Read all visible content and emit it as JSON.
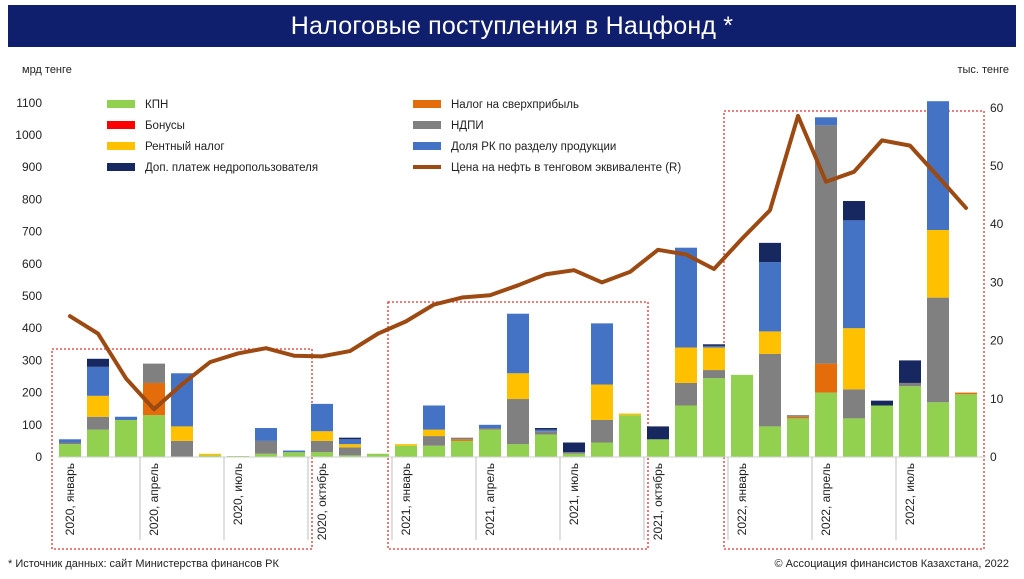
{
  "title": "Налоговые поступления в Нацфонд *",
  "source": "* Источник данных: сайт Министерства финансов РК",
  "copyright": "© Ассоциация финансистов Казахстана, 2022",
  "colors": {
    "title_bg": "#0f1f6e",
    "kpn": "#92d050",
    "bonuses": "#ff0000",
    "rent_tax": "#ffc000",
    "extra_payment": "#17275f",
    "windfall_tax": "#e46c0a",
    "ndpi": "#808080",
    "production_share": "#4472c4",
    "oil_price": "#9c4a12",
    "highlight": "#e03030"
  },
  "chart_data": {
    "type": "bar",
    "stacked": true,
    "left_axis_label": "мрд тенге",
    "right_axis_label": "тыс. тенге",
    "left_ylim": [
      0,
      1100
    ],
    "left_ticks": [
      "0",
      "100",
      "200",
      "300",
      "400",
      "500",
      "600",
      "700",
      "800",
      "900",
      "1000",
      "1100"
    ],
    "right_ylim": [
      0,
      60
    ],
    "right_ticks": [
      "0",
      "10",
      "20",
      "30",
      "40",
      "50",
      "60"
    ],
    "category_labels": [
      {
        "index": 0,
        "text": "2020, январь"
      },
      {
        "index": 3,
        "text": "2020, апрель"
      },
      {
        "index": 6,
        "text": "2020, июль"
      },
      {
        "index": 9,
        "text": "2020, октябрь"
      },
      {
        "index": 12,
        "text": "2021, январь"
      },
      {
        "index": 15,
        "text": "2021, апрель"
      },
      {
        "index": 18,
        "text": "2021, июль"
      },
      {
        "index": 21,
        "text": "2021, октябрь"
      },
      {
        "index": 24,
        "text": "2022, январь"
      },
      {
        "index": 27,
        "text": "2022, апрель"
      },
      {
        "index": 30,
        "text": "2022, июль"
      }
    ],
    "legend": {
      "left": [
        {
          "key": "kpn",
          "name": "КПН"
        },
        {
          "key": "bonuses",
          "name": "Бонусы"
        },
        {
          "key": "rent_tax",
          "name": "Рентный налог"
        },
        {
          "key": "extra_payment",
          "name": "Доп. платеж недропользователя"
        }
      ],
      "right": [
        {
          "key": "windfall_tax",
          "name": "Налог на сверхприбыль"
        },
        {
          "key": "ndpi",
          "name": "НДПИ"
        },
        {
          "key": "production_share",
          "name": "Доля РК по разделу продукции"
        },
        {
          "key": "oil_price",
          "name": "Цена на нефть в тенговом эквиваленте (R)"
        }
      ]
    },
    "stack_order": [
      "kpn",
      "bonuses",
      "windfall_tax",
      "ndpi",
      "rent_tax",
      "production_share",
      "extra_payment"
    ],
    "series": {
      "kpn": [
        40,
        85,
        115,
        130,
        0,
        5,
        3,
        10,
        15,
        15,
        5,
        10,
        35,
        35,
        50,
        85,
        40,
        70,
        10,
        45,
        130,
        55,
        160,
        245,
        255,
        95,
        120,
        200,
        120,
        160,
        220,
        170,
        195
      ],
      "bonuses": [
        0,
        0,
        0,
        0,
        0,
        0,
        0,
        0,
        0,
        0,
        0,
        0,
        0,
        0,
        0,
        0,
        0,
        0,
        0,
        0,
        0,
        0,
        0,
        0,
        0,
        0,
        0,
        0,
        0,
        0,
        0,
        0,
        0
      ],
      "windfall_tax": [
        0,
        0,
        0,
        100,
        0,
        0,
        0,
        0,
        0,
        0,
        0,
        0,
        0,
        0,
        5,
        0,
        0,
        0,
        0,
        0,
        0,
        0,
        0,
        0,
        0,
        0,
        5,
        90,
        0,
        0,
        0,
        0,
        5
      ],
      "ndpi": [
        5,
        40,
        0,
        60,
        50,
        0,
        0,
        40,
        0,
        35,
        25,
        0,
        0,
        30,
        5,
        5,
        140,
        10,
        5,
        70,
        0,
        0,
        70,
        25,
        0,
        225,
        5,
        740,
        90,
        0,
        10,
        325,
        0
      ],
      "rent_tax": [
        0,
        65,
        0,
        0,
        45,
        5,
        0,
        0,
        0,
        30,
        10,
        0,
        5,
        20,
        0,
        0,
        80,
        0,
        0,
        110,
        5,
        0,
        110,
        70,
        0,
        70,
        0,
        0,
        190,
        0,
        0,
        210,
        0
      ],
      "production_share": [
        10,
        90,
        10,
        0,
        165,
        0,
        0,
        40,
        5,
        85,
        15,
        0,
        0,
        75,
        0,
        10,
        185,
        5,
        0,
        190,
        0,
        0,
        310,
        5,
        0,
        215,
        0,
        25,
        335,
        0,
        0,
        400,
        0
      ],
      "extra_payment": [
        0,
        25,
        0,
        0,
        0,
        0,
        0,
        0,
        0,
        0,
        5,
        0,
        0,
        0,
        0,
        0,
        0,
        5,
        30,
        0,
        0,
        40,
        0,
        5,
        0,
        60,
        0,
        0,
        60,
        15,
        70,
        0,
        0
      ],
      "oil_price": [
        24.2,
        21.2,
        13.5,
        8.2,
        12.5,
        16.3,
        17.8,
        18.7,
        17.4,
        17.3,
        18.2,
        21.2,
        23.3,
        26.2,
        27.4,
        27.8,
        29.5,
        31.4,
        32.1,
        30.0,
        31.8,
        35.6,
        34.8,
        32.3,
        37.5,
        42.4,
        58.6,
        47.3,
        49.0,
        54.4,
        53.5,
        48.2,
        42.8
      ]
    },
    "highlight_boxes": [
      [
        0,
        8
      ],
      [
        12,
        20
      ],
      [
        24,
        32
      ]
    ]
  }
}
